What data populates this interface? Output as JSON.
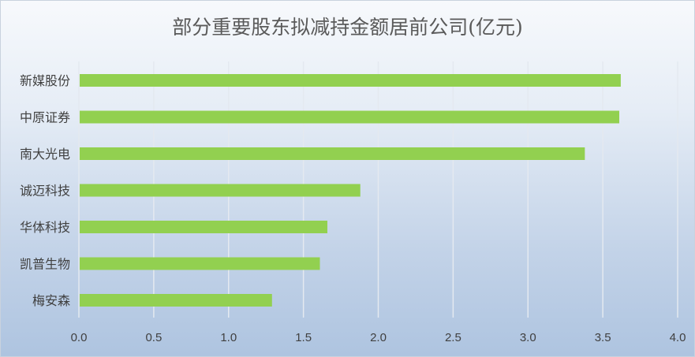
{
  "chart_data": {
    "type": "bar",
    "orientation": "horizontal",
    "title": "部分重要股东拟减持金额居前公司(亿元)",
    "categories": [
      "新媒股份",
      "中原证券",
      "南大光电",
      "诚迈科技",
      "华体科技",
      "凯普生物",
      "梅安森"
    ],
    "values": [
      3.62,
      3.61,
      3.38,
      1.88,
      1.66,
      1.61,
      1.29
    ],
    "xlim": [
      0,
      4.0
    ],
    "xticks": [
      "0.0",
      "0.5",
      "1.0",
      "1.5",
      "2.0",
      "2.5",
      "3.0",
      "3.5",
      "4.0"
    ],
    "grid": true,
    "bar_color": "#92d050"
  }
}
